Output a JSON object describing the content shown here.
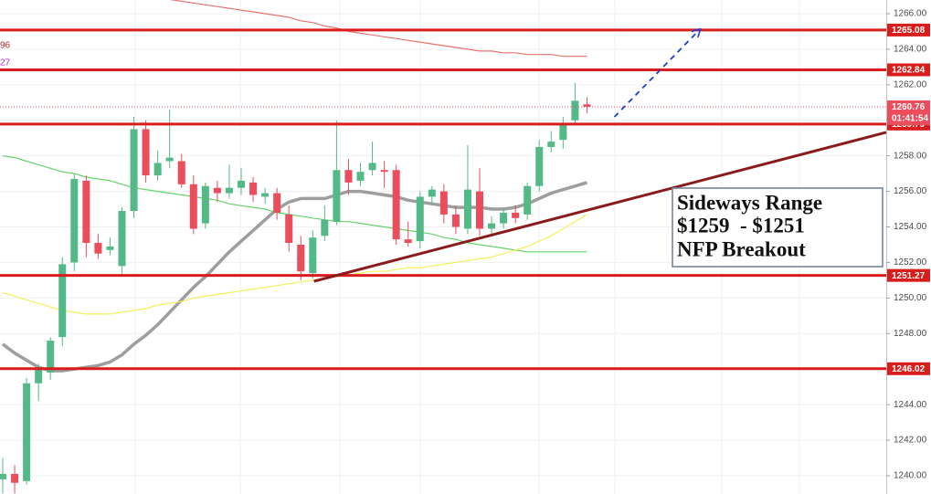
{
  "chart_data": {
    "type": "candlestick",
    "ylim": [
      1238.97,
      1266.77
    ],
    "yticks": [
      {
        "value": 1240,
        "label": "1240.00"
      },
      {
        "value": 1242,
        "label": "1242.00"
      },
      {
        "value": 1244,
        "label": "1244.00"
      },
      {
        "value": 1246,
        "label": "1246.00"
      },
      {
        "value": 1248,
        "label": "1248.00"
      },
      {
        "value": 1250,
        "label": "1250.00"
      },
      {
        "value": 1252,
        "label": "1252.00"
      },
      {
        "value": 1254,
        "label": "1254.00"
      },
      {
        "value": 1256,
        "label": "1256.00"
      },
      {
        "value": 1258,
        "label": "1258.00"
      },
      {
        "value": 1260,
        "label": "1260.00"
      },
      {
        "value": 1262,
        "label": "1262.00"
      },
      {
        "value": 1264,
        "label": "1264.00"
      },
      {
        "value": 1266,
        "label": "1266.00"
      }
    ],
    "grid": true,
    "up_color": "#53b987",
    "down_color": "#eb4d5c",
    "candles": {
      "open": [
        1239.8,
        1240.1,
        1239.7,
        1245.2,
        1245.8,
        1247.8,
        1252,
        1256.6,
        1253.1,
        1252.7,
        1251.8,
        1254.9,
        1259.5,
        1256.9,
        1257.7,
        1257.7,
        1256.4,
        1254.2,
        1256.2,
        1255.9,
        1256.2,
        1256.5,
        1255.7,
        1255.9,
        1254.7,
        1253,
        1251.4,
        1253.5,
        1254.3,
        1257.2,
        1256.6,
        1257.2,
        1257.2,
        1257.2,
        1253.3,
        1253.2,
        1255.7,
        1256,
        1254.7,
        1253.9,
        1256,
        1253.9,
        1254.2,
        1254.8,
        1254.7,
        1256.3,
        1258.5,
        1258.9,
        1260,
        1260.9
      ],
      "high": [
        1241,
        1240.6,
        1245.5,
        1246.3,
        1247.8,
        1252.3,
        1257,
        1256.9,
        1253.6,
        1253.4,
        1255.1,
        1260.2,
        1260,
        1258.3,
        1260.6,
        1258.1,
        1256.9,
        1256.5,
        1256.6,
        1257.5,
        1257.3,
        1256.8,
        1256.2,
        1256.2,
        1255.2,
        1253.5,
        1253.8,
        1255.2,
        1260,
        1257.8,
        1257.6,
        1258.8,
        1257.7,
        1257.5,
        1254.3,
        1256,
        1256.3,
        1256.4,
        1255.2,
        1258.6,
        1257.3,
        1254.6,
        1255.1,
        1255.2,
        1256.5,
        1258.9,
        1259.4,
        1260.2,
        1262.1,
        1261.3
      ],
      "low": [
        1239,
        1239,
        1239.5,
        1244.2,
        1245.4,
        1247.3,
        1251.5,
        1252.3,
        1252.2,
        1252.4,
        1251.3,
        1254.5,
        1256.5,
        1256.6,
        1257.3,
        1256.2,
        1253.6,
        1253.9,
        1255.4,
        1255.6,
        1255.8,
        1255.4,
        1255.3,
        1254.4,
        1252.6,
        1251,
        1251.1,
        1253.2,
        1254.1,
        1255.8,
        1256.3,
        1256.9,
        1256.2,
        1253,
        1252.9,
        1252.8,
        1255.2,
        1254.2,
        1253.6,
        1253.6,
        1253.5,
        1253.6,
        1253.9,
        1254.2,
        1254.4,
        1256,
        1258.2,
        1258.4,
        1259.7,
        1260.4
      ],
      "close": [
        1240.1,
        1239.6,
        1245.2,
        1246.0,
        1247.6,
        1251.9,
        1256.7,
        1253.1,
        1252.5,
        1252.9,
        1254.9,
        1259.5,
        1256.9,
        1257.6,
        1257.9,
        1256.4,
        1253.9,
        1256.3,
        1255.9,
        1256.2,
        1256.6,
        1255.8,
        1255.9,
        1254.8,
        1253.1,
        1251.5,
        1253.4,
        1254.4,
        1257.2,
        1256.5,
        1257.1,
        1257.6,
        1257.1,
        1253.3,
        1253.1,
        1255.7,
        1256.1,
        1254.7,
        1254,
        1256.1,
        1253.9,
        1254.2,
        1254.8,
        1254.5,
        1256.3,
        1258.5,
        1258.8,
        1259.8,
        1261.1,
        1260.76
      ]
    },
    "lines": [
      {
        "color": "#9e9e9e",
        "width": 3.5,
        "values": [
          1247.4,
          1246.9,
          1246.5,
          1246.1,
          1245.9,
          1245.9,
          1246,
          1246.1,
          1246.2,
          1246.4,
          1246.8,
          1247.4,
          1247.9,
          1248.5,
          1249.2,
          1249.9,
          1250.6,
          1251.2,
          1251.9,
          1252.6,
          1253.2,
          1253.8,
          1254.4,
          1255,
          1255.4,
          1255.6,
          1255.6,
          1255.6,
          1255.8,
          1256,
          1256,
          1255.9,
          1255.8,
          1255.7,
          1255.5,
          1255.4,
          1255.3,
          1255.2,
          1255.1,
          1255.1,
          1255.1,
          1255,
          1255,
          1255.1,
          1255.3,
          1255.6,
          1255.9,
          1256.1,
          1256.3,
          1256.5
        ]
      },
      {
        "color": "#66d36b",
        "width": 1.2,
        "values": [
          1258,
          1257.9,
          1257.7,
          1257.5,
          1257.3,
          1257.1,
          1257,
          1256.8,
          1256.7,
          1256.6,
          1256.4,
          1256.2,
          1256.1,
          1256,
          1255.9,
          1255.8,
          1255.7,
          1255.6,
          1255.5,
          1255.3,
          1255.2,
          1255.1,
          1255,
          1254.8,
          1254.7,
          1254.6,
          1254.5,
          1254.4,
          1254.3,
          1254.3,
          1254.2,
          1254.1,
          1254,
          1253.9,
          1253.8,
          1253.7,
          1253.6,
          1253.4,
          1253.3,
          1253.1,
          1253,
          1252.9,
          1252.8,
          1252.7,
          1252.6,
          1252.6,
          1252.6,
          1252.6,
          1252.6,
          1252.6
        ]
      },
      {
        "color": "#f3f05a",
        "width": 1.2,
        "values": [
          1250.3,
          1250.1,
          1249.9,
          1249.7,
          1249.5,
          1249.3,
          1249.2,
          1249.1,
          1249.1,
          1249.1,
          1249.2,
          1249.3,
          1249.4,
          1249.6,
          1249.7,
          1249.8,
          1250,
          1250.1,
          1250.2,
          1250.3,
          1250.4,
          1250.5,
          1250.6,
          1250.7,
          1250.8,
          1250.9,
          1251,
          1251.1,
          1251.2,
          1251.3,
          1251.4,
          1251.5,
          1251.5,
          1251.6,
          1251.7,
          1251.7,
          1251.8,
          1251.9,
          1252,
          1252.1,
          1252.2,
          1252.3,
          1252.5,
          1252.7,
          1252.9,
          1253.2,
          1253.5,
          1253.9,
          1254.3,
          1254.7
        ]
      },
      {
        "color": "#e8736f",
        "width": 1.2,
        "values": [
          null,
          null,
          null,
          null,
          null,
          null,
          null,
          null,
          null,
          null,
          null,
          null,
          null,
          null,
          1266.8,
          1266.7,
          1266.6,
          1266.5,
          1266.4,
          1266.3,
          1266.2,
          1266.1,
          1266,
          1265.9,
          1265.8,
          1265.6,
          1265.5,
          1265.3,
          1265.2,
          1265,
          1264.9,
          1264.8,
          1264.7,
          1264.6,
          1264.5,
          1264.4,
          1264.3,
          1264.2,
          1264.1,
          1264,
          1263.9,
          1263.9,
          1263.8,
          1263.8,
          1263.7,
          1263.7,
          1263.7,
          1263.6,
          1263.6,
          1263.6
        ]
      }
    ],
    "levels": [
      1265.08,
      1262.84,
      1259.79,
      1251.27,
      1246.02
    ],
    "level_color": "#d91c1c",
    "last_price": 1260.76,
    "countdown": "01:41:54",
    "trendline": {
      "x": [
        26.1,
        74.1
      ],
      "y": [
        1250.94,
        1259.32
      ],
      "color": "#8b1a1a"
    },
    "arrow": {
      "x": [
        51.3,
        58.4
      ],
      "y": [
        1260.19,
        1265.07
      ],
      "color": "#1f3fcc"
    },
    "annotation_lines": [
      "Sideways Range",
      "$1259  - $1251",
      "NFP Breakout"
    ],
    "left_labels": [
      {
        "text": "96",
        "color": "#c0282c"
      },
      {
        "text": "27",
        "color": "#b030d0"
      }
    ]
  }
}
